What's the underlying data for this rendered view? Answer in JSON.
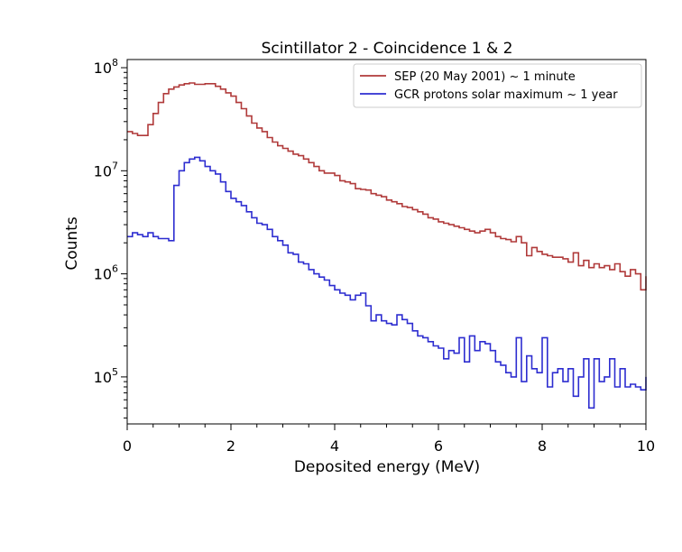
{
  "chart_data": {
    "type": "line",
    "title": "Scintillator 2 - Coincidence 1 & 2",
    "xlabel": "Deposited energy (MeV)",
    "ylabel": "Counts",
    "xlim": [
      0,
      10
    ],
    "ylim": [
      35000,
      120000000
    ],
    "yscale": "log",
    "grid": false,
    "legend_position": "top-right",
    "xticks": [
      "0",
      "2",
      "4",
      "6",
      "8",
      "10"
    ],
    "yticks": [
      {
        "value": 100000,
        "base": "10",
        "exp": "5"
      },
      {
        "value": 1000000,
        "base": "10",
        "exp": "6"
      },
      {
        "value": 10000000,
        "base": "10",
        "exp": "7"
      },
      {
        "value": 100000000,
        "base": "10",
        "exp": "8"
      }
    ],
    "bin_width": 0.1,
    "series": [
      {
        "name": "SEP (20 May 2001) ~ 1 minute",
        "color": "#b03a3a",
        "style": "step",
        "values": [
          24000000,
          23000000,
          22000000,
          22000000,
          28000000,
          36000000,
          46000000,
          56000000,
          62000000,
          65000000,
          68000000,
          70000000,
          71000000,
          69000000,
          69000000,
          70000000,
          70000000,
          66000000,
          62000000,
          57000000,
          53000000,
          46000000,
          40000000,
          34000000,
          29000000,
          26000000,
          24000000,
          21000000,
          19000000,
          17500000,
          16500000,
          15500000,
          14500000,
          14000000,
          13000000,
          12000000,
          11000000,
          10000000,
          9500000,
          9500000,
          9000000,
          8000000,
          7800000,
          7500000,
          6700000,
          6600000,
          6500000,
          6000000,
          5800000,
          5600000,
          5200000,
          5000000,
          4800000,
          4500000,
          4400000,
          4200000,
          4000000,
          3800000,
          3500000,
          3400000,
          3200000,
          3100000,
          3000000,
          2900000,
          2800000,
          2700000,
          2600000,
          2500000,
          2600000,
          2700000,
          2500000,
          2300000,
          2200000,
          2150000,
          2050000,
          2300000,
          2000000,
          1500000,
          1800000,
          1650000,
          1550000,
          1500000,
          1450000,
          1450000,
          1400000,
          1300000,
          1600000,
          1200000,
          1350000,
          1150000,
          1250000,
          1150000,
          1200000,
          1100000,
          1250000,
          1050000,
          950000,
          1100000,
          1000000,
          700000,
          950000
        ]
      },
      {
        "name": "GCR protons solar maximum ~ 1 year",
        "color": "#2d2dd0",
        "style": "step",
        "values": [
          2300000,
          2500000,
          2400000,
          2300000,
          2500000,
          2300000,
          2200000,
          2200000,
          2100000,
          7200000,
          10000000,
          12000000,
          13000000,
          13500000,
          12500000,
          11000000,
          10000000,
          9300000,
          7800000,
          6300000,
          5400000,
          5000000,
          4600000,
          4000000,
          3500000,
          3100000,
          3000000,
          2700000,
          2300000,
          2100000,
          1900000,
          1600000,
          1550000,
          1300000,
          1250000,
          1100000,
          1000000,
          930000,
          870000,
          770000,
          700000,
          650000,
          620000,
          560000,
          620000,
          650000,
          490000,
          350000,
          400000,
          350000,
          330000,
          320000,
          400000,
          360000,
          330000,
          280000,
          250000,
          240000,
          220000,
          200000,
          190000,
          150000,
          180000,
          170000,
          240000,
          140000,
          250000,
          180000,
          220000,
          210000,
          180000,
          140000,
          130000,
          110000,
          100000,
          240000,
          90000,
          160000,
          120000,
          110000,
          240000,
          80000,
          110000,
          120000,
          90000,
          120000,
          65000,
          100000,
          150000,
          50000,
          150000,
          90000,
          100000,
          150000,
          80000,
          120000,
          80000,
          85000,
          80000,
          75000,
          100000
        ]
      }
    ]
  }
}
